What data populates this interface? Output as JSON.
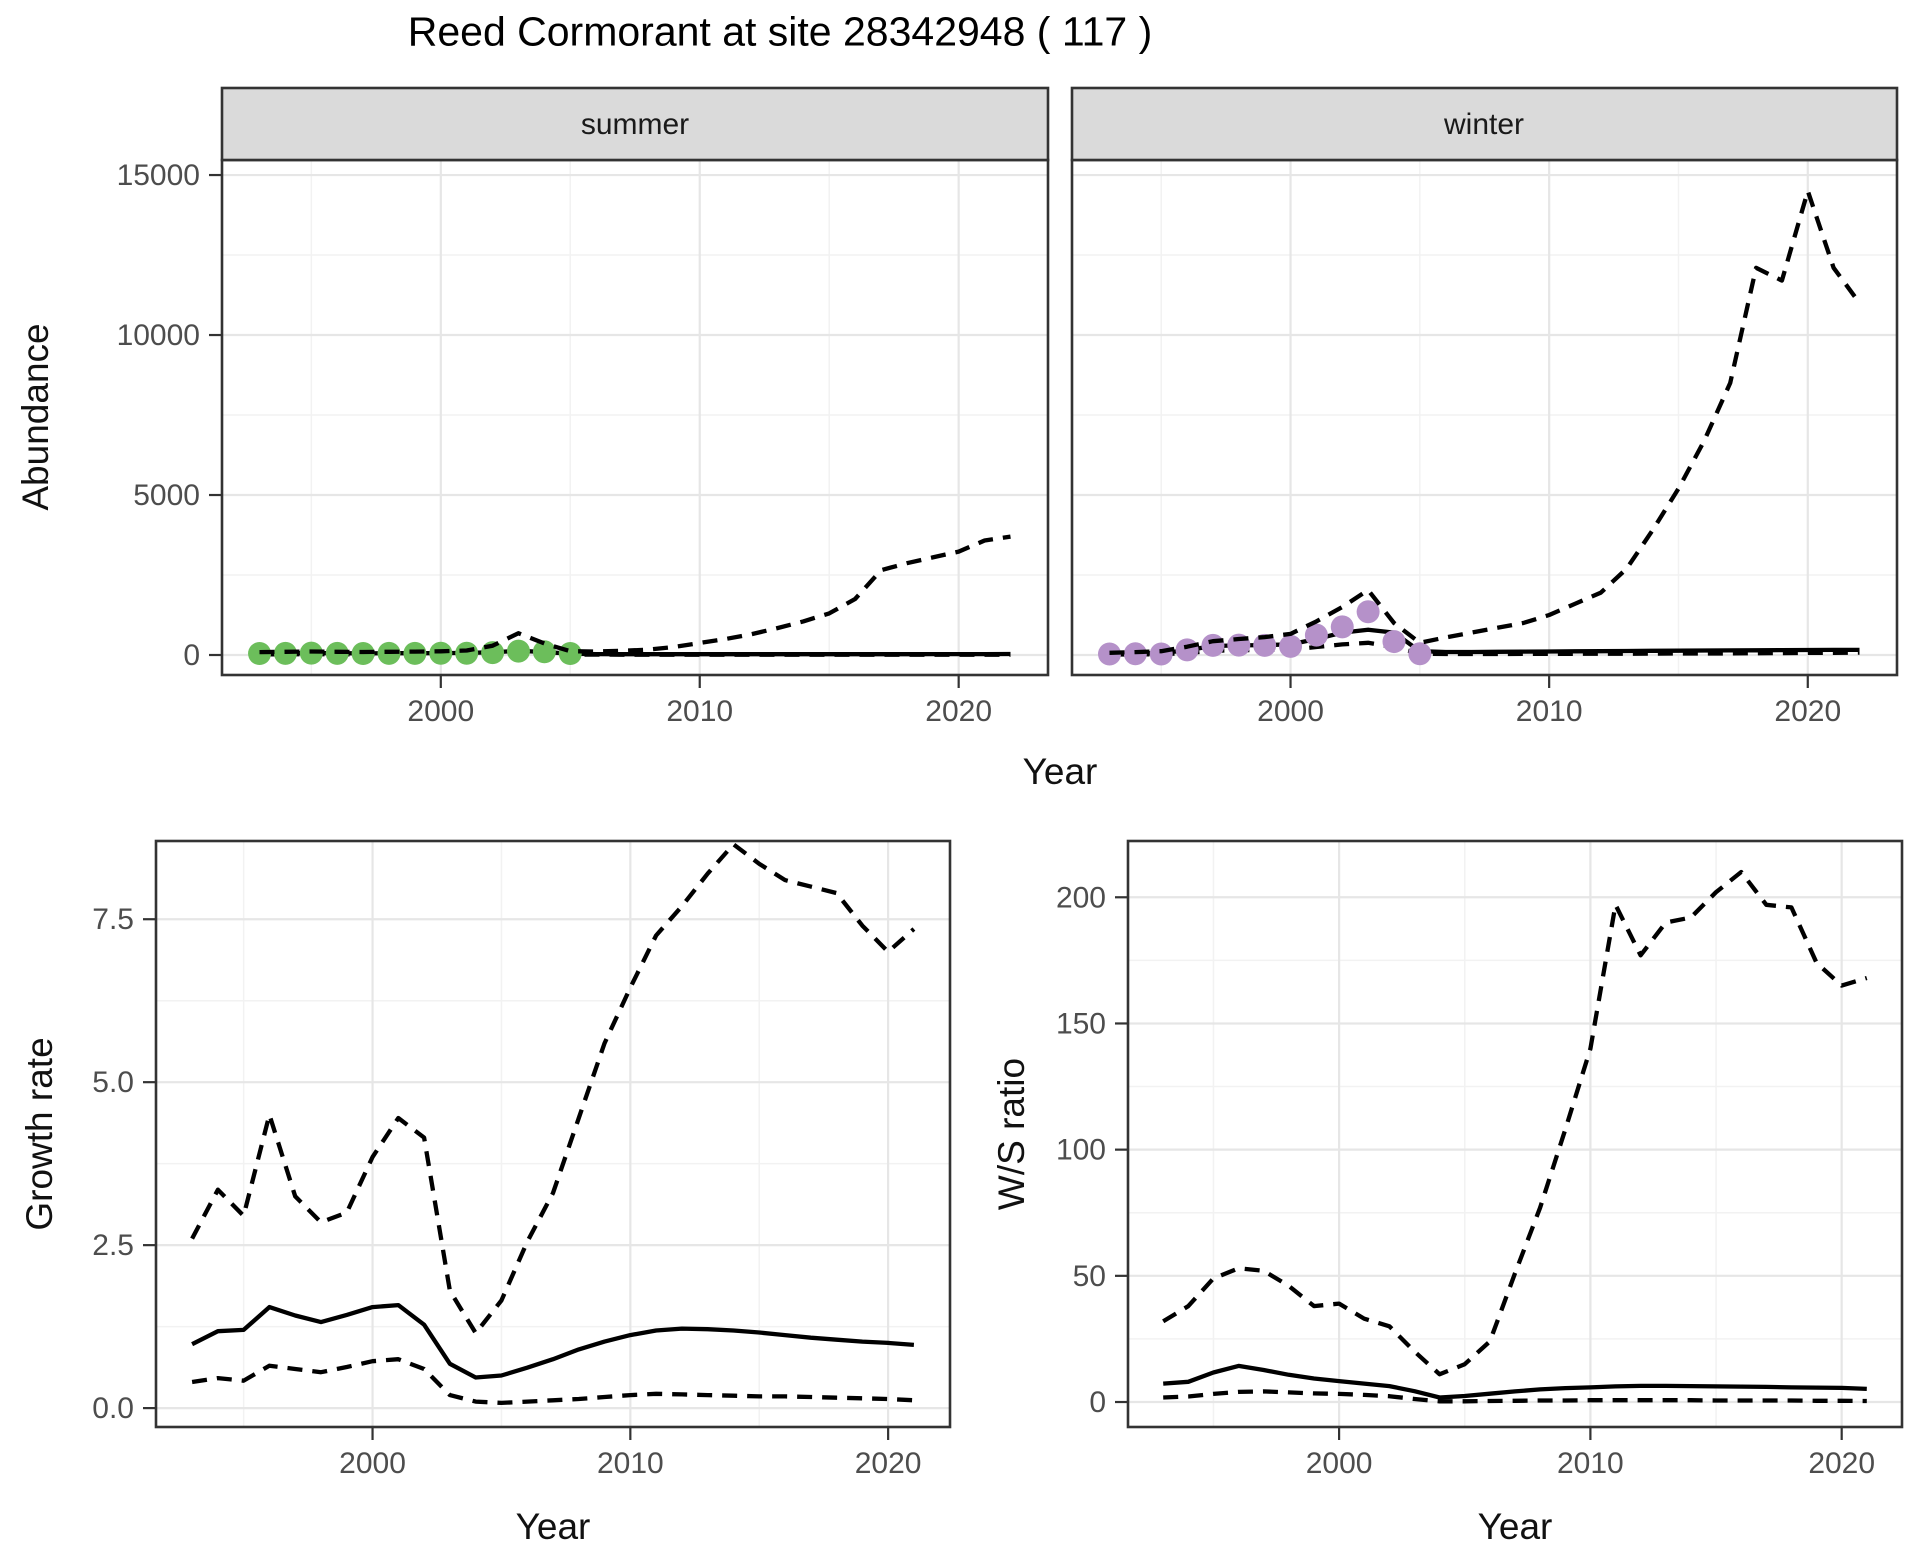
{
  "title": "Reed Cormorant at site 28342948 ( 117 )",
  "colors": {
    "summer_points": "#6CBE5B",
    "winter_points": "#B591C9",
    "line": "#000000",
    "grid_major": "#e6e6e6",
    "grid_minor": "#f2f2f2",
    "panel_border": "#333333",
    "strip_bg": "#dadada",
    "axis_text": "#4d4d4d"
  },
  "chart_data": [
    {
      "type": "line",
      "facet": "summer",
      "xlabel": "Year",
      "ylabel": "Abundance",
      "xlim": [
        1991.55,
        2023.45
      ],
      "ylim": [
        -625,
        15470
      ],
      "xticks": [
        2000,
        2010,
        2020
      ],
      "xtick_labels": [
        "2000",
        "2010",
        "2020"
      ],
      "xminor": [
        1995,
        2005,
        2015
      ],
      "yticks": [
        0,
        5000,
        10000,
        15000
      ],
      "ytick_labels": [
        "0",
        "5000",
        "10000",
        "15000"
      ],
      "yminor": [
        2500,
        7500,
        12500
      ],
      "series": [
        {
          "name": "lower_ci",
          "style": "dashed",
          "x": [
            1993,
            1994,
            1995,
            1996,
            1997,
            1998,
            1999,
            2000,
            2001,
            2002,
            2003,
            2004,
            2005,
            2006,
            2007,
            2008,
            2009,
            2010,
            2011,
            2012,
            2013,
            2014,
            2015,
            2016,
            2017,
            2018,
            2019,
            2020,
            2021,
            2022
          ],
          "y": [
            20,
            22,
            25,
            22,
            20,
            22,
            22,
            25,
            25,
            30,
            45,
            35,
            15,
            12,
            10,
            10,
            10,
            10,
            10,
            10,
            10,
            10,
            10,
            10,
            10,
            10,
            10,
            10,
            10,
            10
          ]
        },
        {
          "name": "mean",
          "style": "solid",
          "x": [
            1993,
            1994,
            1995,
            1996,
            1997,
            1998,
            1999,
            2000,
            2001,
            2002,
            2003,
            2004,
            2005,
            2006,
            2007,
            2008,
            2009,
            2010,
            2011,
            2012,
            2013,
            2014,
            2015,
            2016,
            2017,
            2018,
            2019,
            2020,
            2021,
            2022
          ],
          "y": [
            50,
            55,
            60,
            55,
            50,
            55,
            55,
            60,
            65,
            85,
            130,
            95,
            40,
            28,
            26,
            25,
            25,
            25,
            25,
            25,
            25,
            25,
            25,
            25,
            25,
            26,
            27,
            28,
            29,
            30
          ]
        },
        {
          "name": "observations",
          "style": "points",
          "color": "#6CBE5B",
          "x": [
            1993,
            1994,
            1995,
            1996,
            1997,
            1998,
            1999,
            2000,
            2001,
            2002,
            2003,
            2004,
            2005
          ],
          "y": [
            45,
            50,
            60,
            50,
            45,
            50,
            50,
            55,
            55,
            75,
            120,
            100,
            45
          ]
        },
        {
          "name": "upper_ci",
          "style": "dashed",
          "x": [
            1993,
            1994,
            1995,
            1996,
            1997,
            1998,
            1999,
            2000,
            2001,
            2002,
            2003,
            2004,
            2005,
            2006,
            2007,
            2008,
            2009,
            2010,
            2011,
            2012,
            2013,
            2014,
            2015,
            2016,
            2017,
            2018,
            2019,
            2020,
            2021,
            2022
          ],
          "y": [
            90,
            100,
            110,
            100,
            95,
            100,
            105,
            115,
            140,
            290,
            680,
            360,
            120,
            110,
            130,
            165,
            250,
            375,
            500,
            650,
            840,
            1050,
            1300,
            1750,
            2650,
            2870,
            3050,
            3230,
            3580,
            3700
          ]
        }
      ]
    },
    {
      "type": "line",
      "facet": "winter",
      "xlabel": "Year",
      "ylabel": "Abundance",
      "xlim": [
        1991.55,
        2023.45
      ],
      "ylim": [
        -625,
        15470
      ],
      "xticks": [
        2000,
        2010,
        2020
      ],
      "xtick_labels": [
        "2000",
        "2010",
        "2020"
      ],
      "xminor": [
        1995,
        2005,
        2015
      ],
      "yticks": [
        0,
        5000,
        10000,
        15000
      ],
      "ytick_labels": [
        "0",
        "5000",
        "10000",
        "15000"
      ],
      "yminor": [
        2500,
        7500,
        12500
      ],
      "series": [
        {
          "name": "lower_ci",
          "style": "dashed",
          "x": [
            1993,
            1994,
            1995,
            1996,
            1997,
            1998,
            1999,
            2000,
            2001,
            2002,
            2003,
            2004,
            2005,
            2006,
            2007,
            2008,
            2009,
            2010,
            2011,
            2012,
            2013,
            2014,
            2015,
            2016,
            2017,
            2018,
            2019,
            2020,
            2021,
            2022
          ],
          "y": [
            15,
            20,
            25,
            60,
            130,
            150,
            160,
            170,
            250,
            330,
            380,
            250,
            40,
            30,
            30,
            32,
            34,
            36,
            38,
            40,
            42,
            44,
            46,
            48,
            50,
            55,
            60,
            65,
            70,
            75
          ]
        },
        {
          "name": "mean",
          "style": "solid",
          "x": [
            1993,
            1994,
            1995,
            1996,
            1997,
            1998,
            1999,
            2000,
            2001,
            2002,
            2003,
            2004,
            2005,
            2006,
            2007,
            2008,
            2009,
            2010,
            2011,
            2012,
            2013,
            2014,
            2015,
            2016,
            2017,
            2018,
            2019,
            2020,
            2021,
            2022
          ],
          "y": [
            40,
            50,
            60,
            150,
            280,
            300,
            310,
            330,
            500,
            700,
            790,
            700,
            120,
            95,
            95,
            100,
            105,
            110,
            115,
            120,
            125,
            130,
            135,
            140,
            145,
            148,
            152,
            155,
            158,
            160
          ]
        },
        {
          "name": "observations",
          "style": "points",
          "color": "#B591C9",
          "x": [
            1993,
            1994,
            1995,
            1996,
            1997,
            1998,
            1999,
            2000,
            2001,
            2002,
            2003,
            2004,
            2005
          ],
          "y": [
            30,
            40,
            30,
            160,
            300,
            310,
            300,
            270,
            620,
            880,
            1350,
            420,
            40
          ]
        },
        {
          "name": "upper_ci",
          "style": "dashed",
          "x": [
            1993,
            1994,
            1995,
            1996,
            1997,
            1998,
            1999,
            2000,
            2001,
            2002,
            2003,
            2004,
            2005,
            2006,
            2007,
            2008,
            2009,
            2010,
            2011,
            2012,
            2013,
            2014,
            2015,
            2016,
            2017,
            2018,
            2019,
            2020,
            2021,
            2022
          ],
          "y": [
            70,
            90,
            120,
            260,
            430,
            500,
            560,
            660,
            1050,
            1500,
            2030,
            1000,
            380,
            550,
            700,
            850,
            1000,
            1250,
            1600,
            1950,
            2700,
            3900,
            5200,
            6700,
            8500,
            12100,
            11700,
            14500,
            12100,
            11000
          ]
        }
      ]
    },
    {
      "type": "line",
      "facet": "",
      "xlabel": "Year",
      "ylabel": "Growth rate",
      "xlim": [
        1991.6,
        2022.4
      ],
      "ylim": [
        -0.29,
        8.7
      ],
      "xticks": [
        2000,
        2010,
        2020
      ],
      "xtick_labels": [
        "2000",
        "2010",
        "2020"
      ],
      "xminor": [
        1995,
        2005,
        2015
      ],
      "yticks": [
        0,
        2.5,
        5,
        7.5
      ],
      "ytick_labels": [
        "0.0",
        "2.5",
        "5.0",
        "7.5"
      ],
      "yminor": [
        1.25,
        3.75,
        6.25
      ],
      "series": [
        {
          "name": "lower_ci",
          "style": "dashed",
          "x": [
            1993,
            1994,
            1995,
            1996,
            1997,
            1998,
            1999,
            2000,
            2001,
            2002,
            2003,
            2004,
            2005,
            2006,
            2007,
            2008,
            2009,
            2010,
            2011,
            2012,
            2013,
            2014,
            2015,
            2016,
            2017,
            2018,
            2019,
            2020,
            2021
          ],
          "y": [
            0.4,
            0.46,
            0.42,
            0.65,
            0.6,
            0.55,
            0.63,
            0.72,
            0.75,
            0.6,
            0.2,
            0.1,
            0.08,
            0.1,
            0.12,
            0.14,
            0.17,
            0.2,
            0.22,
            0.21,
            0.2,
            0.19,
            0.18,
            0.18,
            0.17,
            0.16,
            0.15,
            0.14,
            0.12
          ]
        },
        {
          "name": "mean",
          "style": "solid",
          "x": [
            1993,
            1994,
            1995,
            1996,
            1997,
            1998,
            1999,
            2000,
            2001,
            2002,
            2003,
            2004,
            2005,
            2006,
            2007,
            2008,
            2009,
            2010,
            2011,
            2012,
            2013,
            2014,
            2015,
            2016,
            2017,
            2018,
            2019,
            2020,
            2021
          ],
          "y": [
            0.98,
            1.18,
            1.2,
            1.55,
            1.42,
            1.32,
            1.43,
            1.55,
            1.58,
            1.28,
            0.68,
            0.47,
            0.5,
            0.62,
            0.75,
            0.9,
            1.02,
            1.12,
            1.19,
            1.22,
            1.21,
            1.19,
            1.16,
            1.12,
            1.08,
            1.05,
            1.02,
            1.0,
            0.97
          ]
        },
        {
          "name": "upper_ci",
          "style": "dashed",
          "x": [
            1993,
            1994,
            1995,
            1996,
            1997,
            1998,
            1999,
            2000,
            2001,
            2002,
            2003,
            2004,
            2005,
            2006,
            2007,
            2008,
            2009,
            2010,
            2011,
            2012,
            2013,
            2014,
            2015,
            2016,
            2017,
            2018,
            2019,
            2020,
            2021
          ],
          "y": [
            2.6,
            3.35,
            2.95,
            4.5,
            3.25,
            2.85,
            3.0,
            3.85,
            4.45,
            4.15,
            1.8,
            1.15,
            1.65,
            2.55,
            3.3,
            4.45,
            5.6,
            6.45,
            7.25,
            7.7,
            8.2,
            8.65,
            8.35,
            8.1,
            8.0,
            7.9,
            7.4,
            7.0,
            7.35
          ]
        }
      ]
    },
    {
      "type": "line",
      "facet": "",
      "xlabel": "Year",
      "ylabel": "W/S ratio",
      "xlim": [
        1991.6,
        2022.4
      ],
      "ylim": [
        -9.9,
        222.3
      ],
      "xticks": [
        2000,
        2010,
        2020
      ],
      "xtick_labels": [
        "2000",
        "2010",
        "2020"
      ],
      "xminor": [
        1995,
        2005,
        2015
      ],
      "yticks": [
        0,
        50,
        100,
        150,
        200
      ],
      "ytick_labels": [
        "0",
        "50",
        "100",
        "150",
        "200"
      ],
      "yminor": [
        25,
        75,
        125,
        175
      ],
      "series": [
        {
          "name": "lower_ci",
          "style": "dashed",
          "x": [
            1993,
            1994,
            1995,
            1996,
            1997,
            1998,
            1999,
            2000,
            2001,
            2002,
            2003,
            2004,
            2005,
            2006,
            2007,
            2008,
            2009,
            2010,
            2011,
            2012,
            2013,
            2014,
            2015,
            2016,
            2017,
            2018,
            2019,
            2020,
            2021
          ],
          "y": [
            1.8,
            2.2,
            3.2,
            4.0,
            4.2,
            3.8,
            3.4,
            3.2,
            2.8,
            2.3,
            1.2,
            0.3,
            0.3,
            0.4,
            0.5,
            0.6,
            0.6,
            0.7,
            0.7,
            0.7,
            0.7,
            0.7,
            0.6,
            0.6,
            0.6,
            0.6,
            0.5,
            0.5,
            0.4
          ]
        },
        {
          "name": "mean",
          "style": "solid",
          "x": [
            1993,
            1994,
            1995,
            1996,
            1997,
            1998,
            1999,
            2000,
            2001,
            2002,
            2003,
            2004,
            2005,
            2006,
            2007,
            2008,
            2009,
            2010,
            2011,
            2012,
            2013,
            2014,
            2015,
            2016,
            2017,
            2018,
            2019,
            2020,
            2021
          ],
          "y": [
            7.3,
            8.0,
            11.7,
            14.3,
            12.7,
            10.8,
            9.3,
            8.3,
            7.3,
            6.3,
            4.3,
            1.8,
            2.4,
            3.3,
            4.2,
            5.0,
            5.5,
            5.8,
            6.2,
            6.4,
            6.4,
            6.3,
            6.2,
            6.1,
            6.0,
            5.8,
            5.7,
            5.6,
            5.2
          ]
        },
        {
          "name": "upper_ci",
          "style": "dashed",
          "x": [
            1993,
            1994,
            1995,
            1996,
            1997,
            1998,
            1999,
            2000,
            2001,
            2002,
            2003,
            2004,
            2005,
            2006,
            2007,
            2008,
            2009,
            2010,
            2011,
            2012,
            2013,
            2014,
            2015,
            2016,
            2017,
            2018,
            2019,
            2020,
            2021
          ],
          "y": [
            32,
            38,
            49,
            53,
            52,
            46,
            38,
            39,
            33,
            30,
            20,
            11,
            15,
            24,
            51,
            77,
            108,
            140,
            197,
            177,
            190,
            192,
            202,
            210,
            197,
            196,
            174,
            165,
            168
          ]
        }
      ]
    }
  ]
}
